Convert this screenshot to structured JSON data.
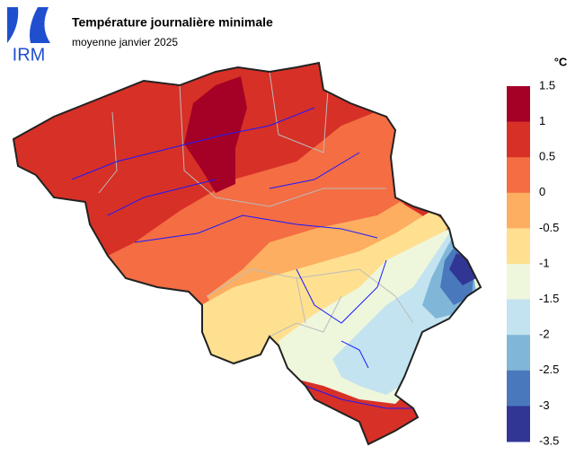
{
  "logo": "IRM",
  "header": {
    "title": "Température journalière minimale",
    "subtitle": "moyenne janvier 2025"
  },
  "legend": {
    "unit": "°C",
    "edges": [
      1.5,
      1,
      0.5,
      0,
      -0.5,
      -1,
      -1.5,
      -2,
      -2.5,
      -3,
      -3.5
    ],
    "colors": [
      "#a50026",
      "#d73027",
      "#f46d43",
      "#fdae61",
      "#fee090",
      "#eef6dc",
      "#c3e3f0",
      "#80b6d8",
      "#4a78bd",
      "#313695"
    ]
  }
}
